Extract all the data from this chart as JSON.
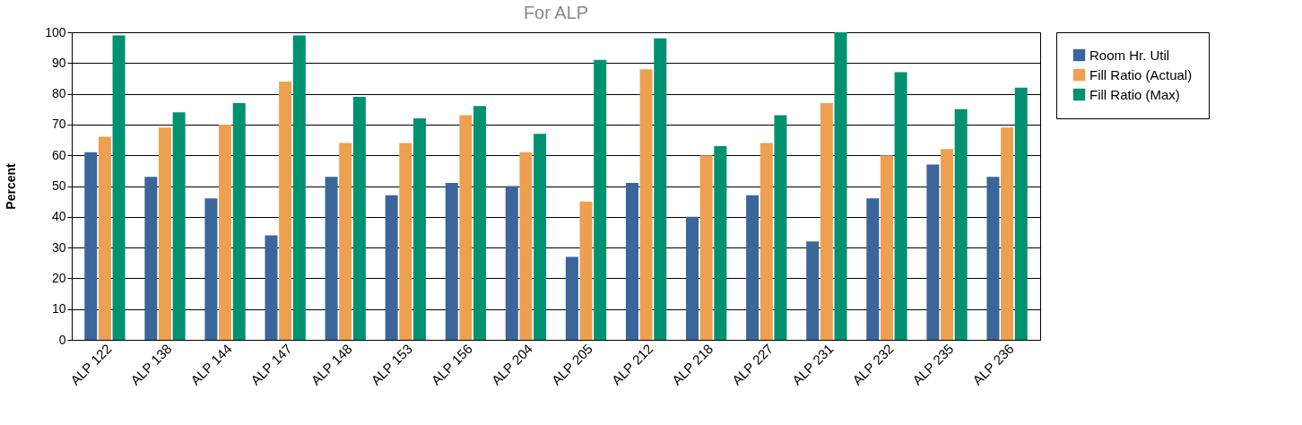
{
  "chart_data": {
    "type": "bar",
    "title": "For ALP",
    "ylabel": "Percent",
    "categories": [
      "ALP 122",
      "ALP 138",
      "ALP 144",
      "ALP 147",
      "ALP 148",
      "ALP 153",
      "ALP 156",
      "ALP 204",
      "ALP 205",
      "ALP 212",
      "ALP 218",
      "ALP 227",
      "ALP 231",
      "ALP 232",
      "ALP 235",
      "ALP 236"
    ],
    "series": [
      {
        "name": "Room Hr. Util",
        "color": "#3a6699",
        "values": [
          61,
          53,
          46,
          34,
          53,
          47,
          51,
          50,
          27,
          51,
          40,
          47,
          32,
          46,
          57,
          53
        ]
      },
      {
        "name": "Fill Ratio (Actual)",
        "color": "#eda050",
        "values": [
          66,
          69,
          70,
          84,
          64,
          64,
          73,
          61,
          45,
          88,
          60,
          64,
          77,
          60,
          62,
          69
        ]
      },
      {
        "name": "Fill Ratio (Max)",
        "color": "#009170",
        "values": [
          99,
          74,
          77,
          99,
          79,
          72,
          76,
          67,
          91,
          98,
          63,
          73,
          100,
          87,
          75,
          82
        ]
      }
    ],
    "ylim": [
      0,
      100
    ],
    "yticks": [
      0,
      10,
      20,
      30,
      40,
      50,
      60,
      70,
      80,
      90,
      100
    ],
    "grid": "y",
    "legend": "right"
  }
}
